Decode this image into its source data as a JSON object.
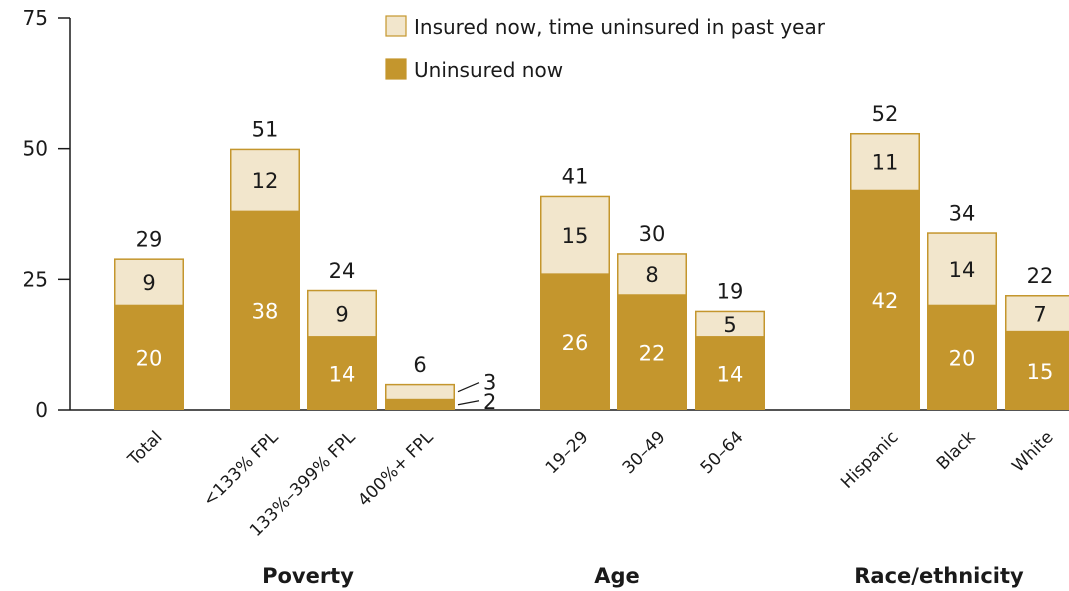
{
  "chart_data": {
    "type": "bar",
    "stacked": true,
    "ylim": [
      0,
      75
    ],
    "yticks": [
      0,
      25,
      50,
      75
    ],
    "grid": false,
    "legend_position": "top",
    "colors": {
      "uninsured_now": "#C4962D",
      "insured_gap": "#F2E6CC",
      "stroke": "#C4962D"
    },
    "groups": [
      {
        "label": "",
        "categories": [
          "Total"
        ]
      },
      {
        "label": "Poverty",
        "categories": [
          "<133% FPL",
          "133%–399% FPL",
          "400%+ FPL"
        ]
      },
      {
        "label": "Age",
        "categories": [
          "19–29",
          "30–49",
          "50–64"
        ]
      },
      {
        "label": "Race/ethnicity",
        "categories": [
          "Hispanic",
          "Black",
          "White"
        ]
      }
    ],
    "categories": [
      "Total",
      "<133% FPL",
      "133%–399% FPL",
      "400%+ FPL",
      "19–29",
      "30–49",
      "50–64",
      "Hispanic",
      "Black",
      "White"
    ],
    "series": [
      {
        "name": "Uninsured now",
        "values": [
          20,
          38,
          14,
          2,
          26,
          22,
          14,
          42,
          20,
          15
        ]
      },
      {
        "name": "Insured now, time uninsured in past year",
        "values": [
          9,
          12,
          9,
          3,
          15,
          8,
          5,
          11,
          14,
          7
        ]
      }
    ],
    "totals": [
      29,
      51,
      24,
      6,
      41,
      30,
      19,
      52,
      34,
      22
    ],
    "legend": [
      {
        "label": "Insured now, time uninsured in past year",
        "series": 1
      },
      {
        "label": "Uninsured now",
        "series": 0
      }
    ]
  }
}
